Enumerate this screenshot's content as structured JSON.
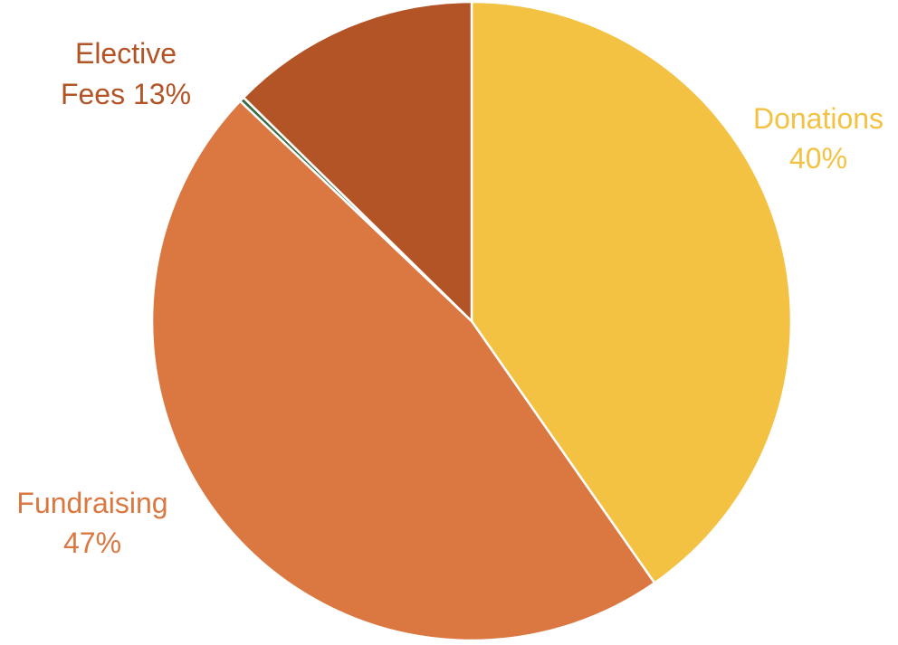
{
  "chart_data": {
    "type": "pie",
    "start_angle_deg": 0,
    "direction": "clockwise",
    "slices": [
      {
        "label": "Donations",
        "percent_label": "40%",
        "value": 40.3,
        "color": "#F4C242",
        "label_color": "#F4C242"
      },
      {
        "label": "Fundraising",
        "percent_label": "47%",
        "value": 46.8,
        "color": "#DB7842",
        "label_color": "#DB7842"
      },
      {
        "label": "",
        "percent_label": "",
        "value": 0.25,
        "color": "#3E6B46",
        "label_color": "#3E6B46"
      },
      {
        "label": "Elective Fees",
        "percent_label": "13%",
        "value": 12.65,
        "color": "#B35427",
        "label_color": "#B35427"
      }
    ]
  }
}
